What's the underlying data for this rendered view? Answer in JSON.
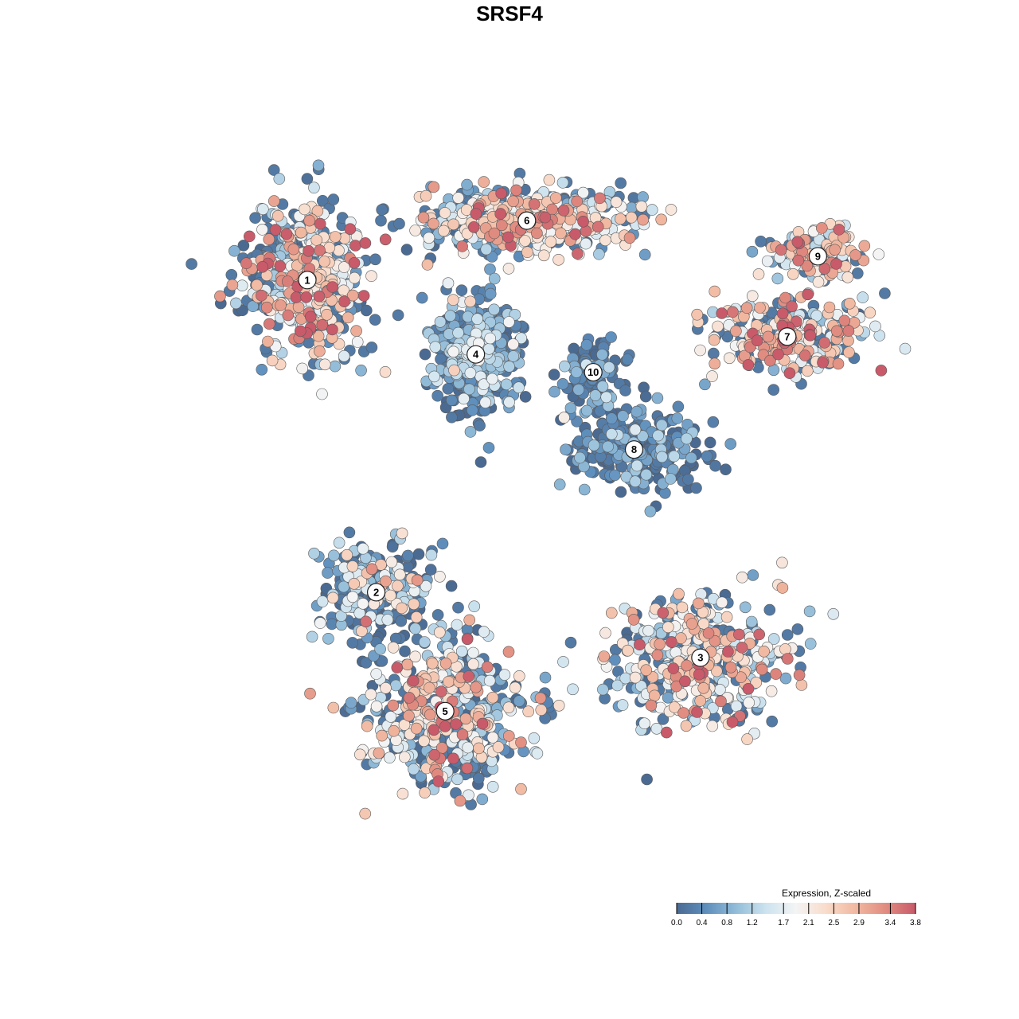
{
  "chart_data": {
    "type": "scatter",
    "title": "SRSF4",
    "xlabel": "",
    "ylabel": "",
    "grid": false,
    "axes_visible": false,
    "color_by": "expression",
    "legend": {
      "title": "Expression, Z-scaled",
      "position": "bottom-right",
      "ticks": [
        "0.0",
        "0.4",
        "0.8",
        "1.2",
        "1.7",
        "2.1",
        "2.5",
        "2.9",
        "3.4",
        "3.8"
      ],
      "range": [
        0.0,
        3.8
      ],
      "colors": [
        "#4a6a92",
        "#5f8fbd",
        "#93bdd9",
        "#cde3ef",
        "#f4f4f4",
        "#f9dccb",
        "#f1b8a0",
        "#e18c80",
        "#c85a6a"
      ]
    },
    "clusters": [
      {
        "label": "1",
        "x": -7.2,
        "y": 6.9,
        "mean_expression": 1.9
      },
      {
        "label": "2",
        "x": -4.5,
        "y": -3.6,
        "mean_expression": 0.9
      },
      {
        "label": "3",
        "x": 8.2,
        "y": -5.8,
        "mean_expression": 1.8
      },
      {
        "label": "4",
        "x": -0.6,
        "y": 4.4,
        "mean_expression": 0.6
      },
      {
        "label": "5",
        "x": -1.8,
        "y": -7.6,
        "mean_expression": 1.7
      },
      {
        "label": "6",
        "x": 1.4,
        "y": 8.9,
        "mean_expression": 1.8
      },
      {
        "label": "7",
        "x": 11.6,
        "y": 5.0,
        "mean_expression": 2.4
      },
      {
        "label": "8",
        "x": 5.6,
        "y": 1.2,
        "mean_expression": 0.3
      },
      {
        "label": "9",
        "x": 12.8,
        "y": 7.7,
        "mean_expression": 2.2
      },
      {
        "label": "10",
        "x": 4.0,
        "y": 3.8,
        "mean_expression": 0.4
      }
    ],
    "xlim": [
      -13.0,
      16.0
    ],
    "ylim": [
      -13.0,
      11.5
    ]
  }
}
